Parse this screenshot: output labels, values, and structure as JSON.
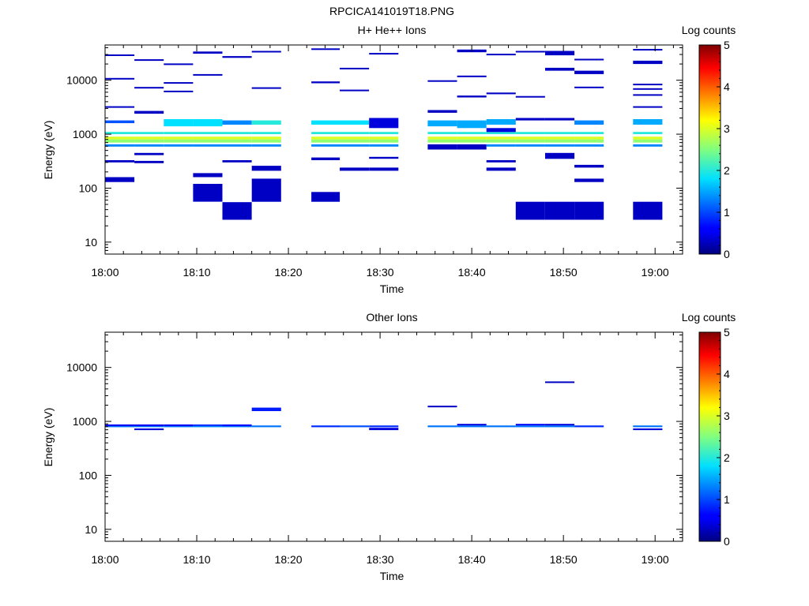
{
  "figure_title": "RPCICA141019T18.PNG",
  "colors": {
    "dark_navy": "#000080",
    "blue": "#1a3cff",
    "mid_blue": "#1f78ff",
    "cyan": "#20e8f0",
    "green": "#7fe07f",
    "yellow": "#e0e040"
  },
  "chart_data": [
    {
      "type": "heatmap",
      "title": "H+ He++ Ions",
      "xlabel": "Time",
      "ylabel": "Energy (eV)",
      "x_ticks": [
        "18:00",
        "18:10",
        "18:20",
        "18:30",
        "18:40",
        "18:50",
        "19:00"
      ],
      "y_ticks": [
        "10",
        "100",
        "1000",
        "10000"
      ],
      "y_scale": "log",
      "ylim": [
        6,
        45000
      ],
      "colorbar": {
        "label": "Log counts",
        "ticks": [
          "0",
          "1",
          "2",
          "3",
          "4",
          "5"
        ],
        "range": [
          0,
          5
        ]
      },
      "time_range_min": [
        0,
        63
      ],
      "cells": [
        [
          0,
          3.2,
          1000,
          1100,
          2.0
        ],
        [
          0,
          3.2,
          800,
          900,
          3.0
        ],
        [
          0,
          3.2,
          700,
          800,
          2.6
        ],
        [
          0,
          3.2,
          590,
          650,
          1.3
        ],
        [
          0,
          3.2,
          1600,
          1800,
          1.0
        ],
        [
          0,
          3.2,
          3100,
          3300,
          0.3
        ],
        [
          0,
          3.2,
          10500,
          11000,
          0.3
        ],
        [
          0,
          3.2,
          28000,
          30000,
          0.3
        ],
        [
          0,
          3.2,
          300,
          330,
          0.3
        ],
        [
          0,
          3.2,
          130,
          160,
          0.3
        ],
        [
          3.2,
          6.4,
          1000,
          1100,
          2.0
        ],
        [
          3.2,
          6.4,
          800,
          900,
          3.0
        ],
        [
          3.2,
          6.4,
          700,
          800,
          2.6
        ],
        [
          3.2,
          6.4,
          590,
          650,
          1.3
        ],
        [
          3.2,
          6.4,
          2400,
          2700,
          0.3
        ],
        [
          3.2,
          6.4,
          7100,
          7500,
          0.3
        ],
        [
          3.2,
          6.4,
          23000,
          24500,
          0.3
        ],
        [
          3.2,
          6.4,
          290,
          320,
          0.3
        ],
        [
          3.2,
          6.4,
          410,
          450,
          0.3
        ],
        [
          6.4,
          9.6,
          1000,
          1100,
          2.0
        ],
        [
          6.4,
          9.6,
          800,
          900,
          3.0
        ],
        [
          6.4,
          9.6,
          700,
          800,
          2.6
        ],
        [
          6.4,
          9.6,
          590,
          650,
          1.3
        ],
        [
          6.4,
          9.6,
          1400,
          1900,
          1.8
        ],
        [
          6.4,
          9.6,
          6000,
          6400,
          0.3
        ],
        [
          6.4,
          9.6,
          8800,
          9200,
          0.3
        ],
        [
          6.4,
          9.6,
          19500,
          20500,
          0.3
        ],
        [
          9.6,
          12.8,
          1000,
          1100,
          2.0
        ],
        [
          9.6,
          12.8,
          800,
          900,
          3.0
        ],
        [
          9.6,
          12.8,
          700,
          800,
          2.6
        ],
        [
          9.6,
          12.8,
          590,
          650,
          1.3
        ],
        [
          9.6,
          12.8,
          1400,
          1900,
          1.8
        ],
        [
          9.6,
          12.8,
          56,
          120,
          0.3
        ],
        [
          9.6,
          12.8,
          160,
          190,
          0.3
        ],
        [
          9.6,
          12.8,
          31000,
          34000,
          0.3
        ],
        [
          9.6,
          12.8,
          12500,
          13000,
          0.3
        ],
        [
          12.8,
          16,
          1000,
          1100,
          2.0
        ],
        [
          12.8,
          16,
          800,
          900,
          3.0
        ],
        [
          12.8,
          16,
          700,
          800,
          2.6
        ],
        [
          12.8,
          16,
          590,
          650,
          1.3
        ],
        [
          12.8,
          16,
          1500,
          1800,
          1.3
        ],
        [
          12.8,
          16,
          26,
          55,
          0.3
        ],
        [
          12.8,
          16,
          300,
          330,
          0.3
        ],
        [
          12.8,
          16,
          26000,
          28000,
          0.3
        ],
        [
          16,
          19.2,
          1000,
          1100,
          2.0
        ],
        [
          16,
          19.2,
          800,
          900,
          3.0
        ],
        [
          16,
          19.2,
          700,
          800,
          2.6
        ],
        [
          16,
          19.2,
          590,
          650,
          1.3
        ],
        [
          16,
          19.2,
          1500,
          1800,
          2.0
        ],
        [
          16,
          19.2,
          56,
          150,
          0.3
        ],
        [
          16,
          19.2,
          210,
          260,
          0.3
        ],
        [
          16,
          19.2,
          7000,
          7400,
          0.3
        ],
        [
          16,
          19.2,
          33000,
          35000,
          0.3
        ],
        [
          22.5,
          25.6,
          1000,
          1100,
          2.0
        ],
        [
          22.5,
          25.6,
          800,
          900,
          3.0
        ],
        [
          22.5,
          25.6,
          700,
          800,
          2.6
        ],
        [
          22.5,
          25.6,
          590,
          650,
          1.3
        ],
        [
          22.5,
          25.6,
          1500,
          1800,
          1.8
        ],
        [
          22.5,
          25.6,
          56,
          85,
          0.3
        ],
        [
          22.5,
          25.6,
          330,
          370,
          0.3
        ],
        [
          22.5,
          25.6,
          8800,
          9500,
          0.3
        ],
        [
          22.5,
          25.6,
          37000,
          39000,
          0.3
        ],
        [
          25.6,
          28.8,
          1000,
          1100,
          2.0
        ],
        [
          25.6,
          28.8,
          800,
          900,
          3.0
        ],
        [
          25.6,
          28.8,
          700,
          800,
          2.6
        ],
        [
          25.6,
          28.8,
          590,
          650,
          1.3
        ],
        [
          25.6,
          28.8,
          1500,
          1800,
          1.8
        ],
        [
          25.6,
          28.8,
          210,
          240,
          0.3
        ],
        [
          25.6,
          28.8,
          16000,
          17000,
          0.3
        ],
        [
          25.6,
          28.8,
          6300,
          6700,
          0.3
        ],
        [
          28.8,
          32,
          1000,
          1100,
          2.0
        ],
        [
          28.8,
          32,
          800,
          900,
          3.0
        ],
        [
          28.8,
          32,
          700,
          800,
          2.6
        ],
        [
          28.8,
          32,
          590,
          650,
          1.3
        ],
        [
          28.8,
          32,
          1300,
          2000,
          0.4
        ],
        [
          28.8,
          32,
          210,
          240,
          0.3
        ],
        [
          28.8,
          32,
          350,
          380,
          0.3
        ],
        [
          28.8,
          32,
          30000,
          32000,
          0.3
        ],
        [
          35.2,
          38.4,
          1000,
          1100,
          2.0
        ],
        [
          35.2,
          38.4,
          800,
          900,
          3.0
        ],
        [
          35.2,
          38.4,
          700,
          800,
          2.6
        ],
        [
          35.2,
          38.4,
          520,
          650,
          0.3
        ],
        [
          35.2,
          38.4,
          1400,
          1800,
          1.5
        ],
        [
          35.2,
          38.4,
          9500,
          10000,
          0.3
        ],
        [
          35.2,
          38.4,
          2500,
          2800,
          0.3
        ],
        [
          38.4,
          41.6,
          1000,
          1100,
          2.0
        ],
        [
          38.4,
          41.6,
          800,
          900,
          3.0
        ],
        [
          38.4,
          41.6,
          700,
          800,
          2.6
        ],
        [
          38.4,
          41.6,
          520,
          650,
          0.3
        ],
        [
          38.4,
          41.6,
          1300,
          1800,
          1.5
        ],
        [
          38.4,
          41.6,
          33000,
          37000,
          0.3
        ],
        [
          38.4,
          41.6,
          4800,
          5200,
          0.3
        ],
        [
          38.4,
          41.6,
          11500,
          12200,
          0.3
        ],
        [
          41.6,
          44.8,
          1000,
          1100,
          2.0
        ],
        [
          41.6,
          44.8,
          800,
          900,
          3.0
        ],
        [
          41.6,
          44.8,
          700,
          800,
          2.6
        ],
        [
          41.6,
          44.8,
          590,
          650,
          1.3
        ],
        [
          41.6,
          44.8,
          1100,
          1300,
          0.4
        ],
        [
          41.6,
          44.8,
          1500,
          1900,
          1.5
        ],
        [
          41.6,
          44.8,
          210,
          240,
          0.3
        ],
        [
          41.6,
          44.8,
          300,
          330,
          0.3
        ],
        [
          41.6,
          44.8,
          5500,
          5900,
          0.3
        ],
        [
          41.6,
          44.8,
          29000,
          31000,
          0.3
        ],
        [
          44.8,
          48,
          1000,
          1100,
          2.0
        ],
        [
          44.8,
          48,
          800,
          900,
          3.0
        ],
        [
          44.8,
          48,
          700,
          800,
          2.6
        ],
        [
          44.8,
          48,
          590,
          650,
          1.3
        ],
        [
          44.8,
          48,
          26,
          56,
          0.3
        ],
        [
          44.8,
          48,
          4800,
          5100,
          0.3
        ],
        [
          44.8,
          48,
          33000,
          35000,
          0.3
        ],
        [
          44.8,
          48,
          1800,
          2000,
          0.3
        ],
        [
          48,
          51.2,
          1000,
          1100,
          2.0
        ],
        [
          48,
          51.2,
          800,
          900,
          3.0
        ],
        [
          48,
          51.2,
          700,
          800,
          2.6
        ],
        [
          48,
          51.2,
          590,
          650,
          1.3
        ],
        [
          48,
          51.2,
          26,
          56,
          0.3
        ],
        [
          48,
          51.2,
          350,
          450,
          0.3
        ],
        [
          48,
          51.2,
          29000,
          35000,
          0.3
        ],
        [
          48,
          51.2,
          15000,
          17000,
          0.3
        ],
        [
          48,
          51.2,
          1800,
          2000,
          0.3
        ],
        [
          51.2,
          54.4,
          1000,
          1100,
          2.0
        ],
        [
          51.2,
          54.4,
          800,
          900,
          3.0
        ],
        [
          51.2,
          54.4,
          700,
          800,
          2.6
        ],
        [
          51.2,
          54.4,
          590,
          650,
          1.3
        ],
        [
          51.2,
          54.4,
          26,
          56,
          0.3
        ],
        [
          51.2,
          54.4,
          1500,
          1800,
          1.3
        ],
        [
          51.2,
          54.4,
          130,
          150,
          0.3
        ],
        [
          51.2,
          54.4,
          240,
          270,
          0.3
        ],
        [
          51.2,
          54.4,
          13000,
          15000,
          0.3
        ],
        [
          51.2,
          54.4,
          24000,
          25000,
          0.3
        ],
        [
          51.2,
          54.4,
          7200,
          7600,
          0.3
        ],
        [
          57.6,
          60.8,
          1000,
          1100,
          2.0
        ],
        [
          57.6,
          60.8,
          800,
          900,
          3.0
        ],
        [
          57.6,
          60.8,
          700,
          800,
          2.6
        ],
        [
          57.6,
          60.8,
          590,
          650,
          1.3
        ],
        [
          57.6,
          60.8,
          1500,
          1900,
          1.5
        ],
        [
          57.6,
          60.8,
          26,
          56,
          0.3
        ],
        [
          57.6,
          60.8,
          3100,
          3300,
          0.3
        ],
        [
          57.6,
          60.8,
          5200,
          5500,
          0.3
        ],
        [
          57.6,
          60.8,
          6800,
          7100,
          0.3
        ],
        [
          57.6,
          60.8,
          8200,
          8600,
          0.3
        ],
        [
          57.6,
          60.8,
          20000,
          23000,
          0.3
        ],
        [
          57.6,
          60.8,
          36000,
          38000,
          0.3
        ]
      ]
    },
    {
      "type": "heatmap",
      "title": "Other Ions",
      "xlabel": "Time",
      "ylabel": "Energy (eV)",
      "x_ticks": [
        "18:00",
        "18:10",
        "18:20",
        "18:30",
        "18:40",
        "18:50",
        "19:00"
      ],
      "y_ticks": [
        "10",
        "100",
        "1000",
        "10000"
      ],
      "y_scale": "log",
      "ylim": [
        6,
        45000
      ],
      "colorbar": {
        "label": "Log counts",
        "ticks": [
          "0",
          "1",
          "2",
          "3",
          "4",
          "5"
        ],
        "range": [
          0,
          5
        ]
      },
      "time_range_min": [
        0,
        63
      ],
      "cells": [
        [
          0,
          3.2,
          780,
          840,
          1.2
        ],
        [
          0,
          3.2,
          840,
          880,
          0.5
        ],
        [
          3.2,
          6.4,
          780,
          840,
          1.2
        ],
        [
          3.2,
          6.4,
          840,
          880,
          0.5
        ],
        [
          3.2,
          6.4,
          690,
          740,
          0.4
        ],
        [
          6.4,
          9.6,
          780,
          840,
          1.2
        ],
        [
          6.4,
          9.6,
          840,
          880,
          0.5
        ],
        [
          9.6,
          12.8,
          780,
          840,
          1.3
        ],
        [
          9.6,
          12.8,
          840,
          880,
          0.8
        ],
        [
          12.8,
          16,
          780,
          840,
          1.2
        ],
        [
          12.8,
          16,
          840,
          880,
          0.6
        ],
        [
          16,
          19.2,
          780,
          840,
          1.2
        ],
        [
          16,
          19.2,
          1550,
          1800,
          0.7
        ],
        [
          22.5,
          25.6,
          780,
          840,
          0.8
        ],
        [
          25.6,
          28.8,
          780,
          840,
          1.0
        ],
        [
          28.8,
          32,
          780,
          840,
          0.8
        ],
        [
          28.8,
          32,
          690,
          760,
          0.4
        ],
        [
          35.2,
          38.4,
          780,
          840,
          1.2
        ],
        [
          35.2,
          38.4,
          1850,
          1950,
          0.3
        ],
        [
          38.4,
          41.6,
          780,
          840,
          1.2
        ],
        [
          38.4,
          41.6,
          840,
          900,
          0.4
        ],
        [
          41.6,
          44.8,
          780,
          840,
          1.2
        ],
        [
          44.8,
          48,
          780,
          840,
          1.2
        ],
        [
          44.8,
          48,
          840,
          900,
          0.5
        ],
        [
          48,
          51.2,
          780,
          840,
          1.2
        ],
        [
          48,
          51.2,
          840,
          900,
          0.4
        ],
        [
          48,
          51.2,
          5300,
          5500,
          0.3
        ],
        [
          51.2,
          54.4,
          780,
          840,
          0.8
        ],
        [
          57.6,
          60.8,
          780,
          840,
          1.2
        ],
        [
          57.6,
          60.8,
          690,
          740,
          0.4
        ]
      ]
    }
  ]
}
